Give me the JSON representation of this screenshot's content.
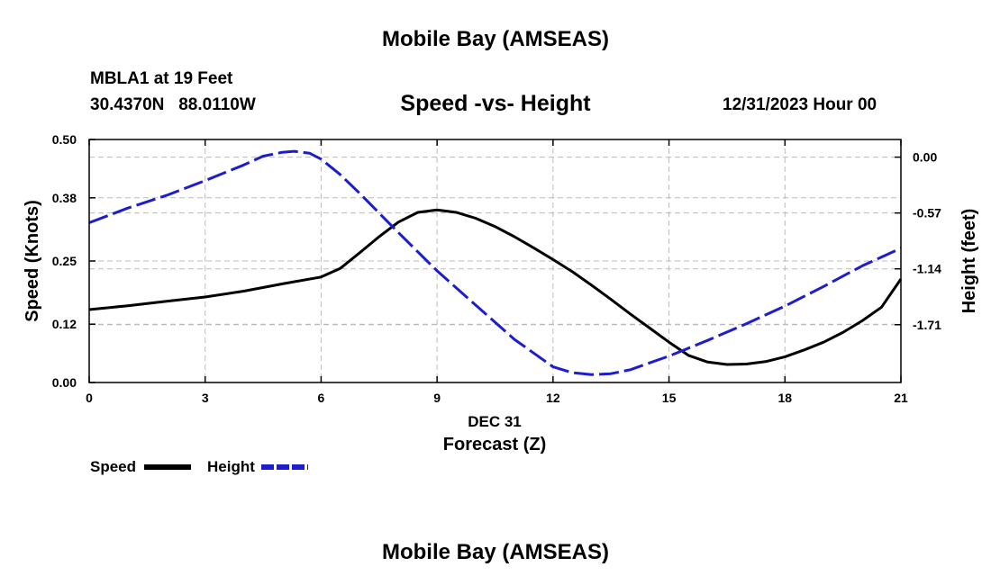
{
  "header": {
    "title": "Mobile Bay (AMSEAS)",
    "station": "MBLA1 at 19 Feet",
    "coordinates": "30.4370N   88.0110W",
    "subtitle": "Speed -vs- Height",
    "datetime": "12/31/2023 Hour 00"
  },
  "footer": {
    "title": "Mobile Bay (AMSEAS)"
  },
  "chart_data": {
    "type": "line",
    "title": "Speed -vs- Height",
    "xlabel": "Forecast (Z)",
    "xlabel_date": "DEC 31",
    "ylabel": "Speed (Knots)",
    "y2label": "Height (feet)",
    "xlim": [
      0,
      21
    ],
    "ylim": [
      0,
      0.5
    ],
    "y2lim": [
      -2.3,
      0.18
    ],
    "x_ticks": [
      "0",
      "3",
      "6",
      "9",
      "12",
      "15",
      "18",
      "21"
    ],
    "y_ticks": [
      "0.00",
      "0.12",
      "0.25",
      "0.38",
      "0.50"
    ],
    "y2_ticks": [
      "0.00",
      "-0.57",
      "-1.14",
      "-1.71"
    ],
    "grid": true,
    "series": [
      {
        "name": "Speed",
        "axis": "left",
        "color": "#000000",
        "style": "solid",
        "x": [
          0,
          1,
          2,
          3,
          4,
          5,
          6,
          6.5,
          7,
          7.5,
          8,
          8.5,
          9,
          9.5,
          10,
          10.5,
          11,
          11.5,
          12,
          12.5,
          13,
          13.5,
          14,
          14.5,
          15,
          15.5,
          16,
          16.5,
          17,
          17.5,
          18,
          18.5,
          19,
          19.5,
          20,
          20.5,
          21
        ],
        "values": [
          0.15,
          0.158,
          0.167,
          0.176,
          0.188,
          0.203,
          0.217,
          0.235,
          0.267,
          0.3,
          0.33,
          0.35,
          0.355,
          0.35,
          0.338,
          0.321,
          0.3,
          0.277,
          0.253,
          0.228,
          0.2,
          0.171,
          0.141,
          0.112,
          0.083,
          0.056,
          0.042,
          0.037,
          0.038,
          0.043,
          0.053,
          0.067,
          0.083,
          0.103,
          0.127,
          0.155,
          0.213
        ]
      },
      {
        "name": "Height",
        "axis": "right",
        "color": "#1d1dd0",
        "style": "dashed",
        "x": [
          0,
          1,
          2,
          3,
          4,
          4.5,
          5,
          5.3,
          5.7,
          6,
          6.5,
          7,
          8,
          9,
          10,
          11,
          12,
          12.5,
          13,
          13.5,
          14,
          15,
          16,
          17,
          18,
          19,
          20,
          21
        ],
        "values": [
          -0.67,
          -0.52,
          -0.39,
          -0.24,
          -0.08,
          0.01,
          0.05,
          0.06,
          0.04,
          -0.02,
          -0.18,
          -0.37,
          -0.77,
          -1.16,
          -1.51,
          -1.86,
          -2.14,
          -2.2,
          -2.22,
          -2.21,
          -2.17,
          -2.03,
          -1.87,
          -1.7,
          -1.52,
          -1.32,
          -1.11,
          -0.93
        ]
      }
    ]
  }
}
